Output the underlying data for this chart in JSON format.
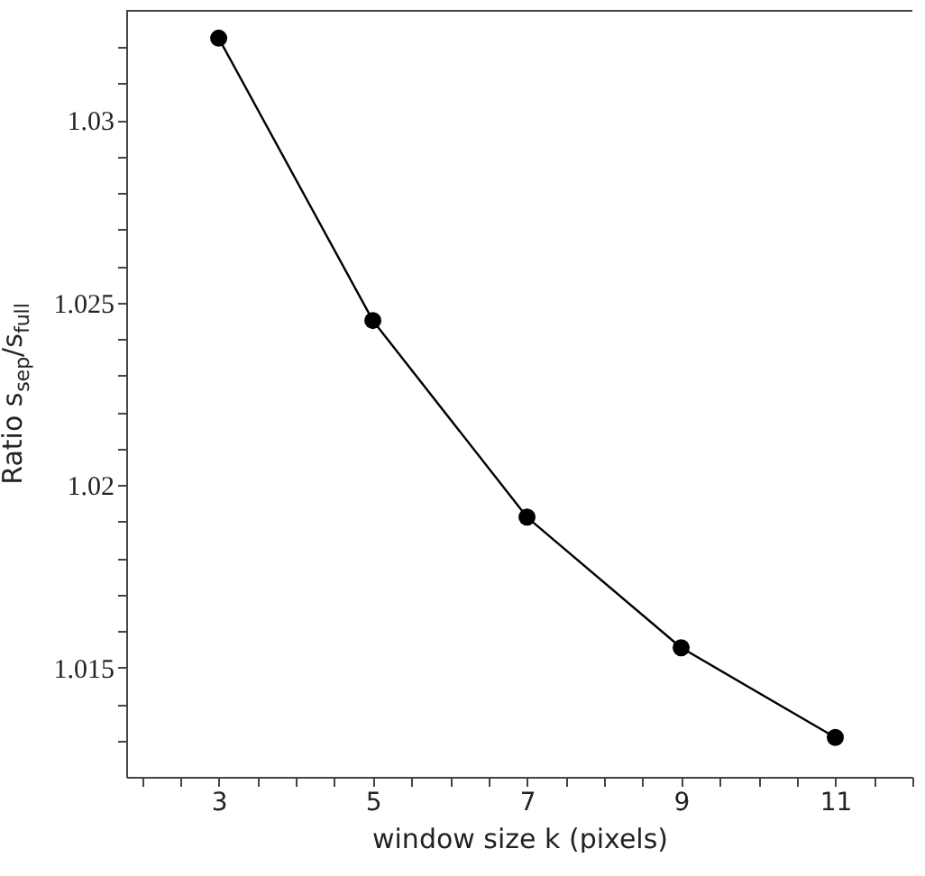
{
  "chart_data": {
    "type": "line",
    "xlabel": "window size k (pixels)",
    "ylabel": "Ratio s$_{sep}$/s$_{full}$",
    "x": [
      3,
      5,
      7,
      9,
      11
    ],
    "series": [
      {
        "color": "#000000",
        "values": [
          1.03225,
          1.02451,
          1.01912,
          1.01554,
          1.01308
        ]
      }
    ],
    "marker": "circle",
    "line_style": "solid",
    "grid": false,
    "xlim": [
      1.8,
      12
    ],
    "xticks": [
      {
        "value": 2,
        "label": null
      },
      {
        "value": 2.5,
        "label": null
      },
      3,
      {
        "value": 3.5,
        "label": null
      },
      {
        "value": 4,
        "label": null
      },
      {
        "value": 4.5,
        "label": null
      },
      5,
      {
        "value": 5.5,
        "label": null
      },
      {
        "value": 6,
        "label": null
      },
      {
        "value": 6.5,
        "label": null
      },
      7,
      {
        "value": 7.5,
        "label": null
      },
      {
        "value": 8,
        "label": null
      },
      {
        "value": 8.5,
        "label": null
      },
      9,
      {
        "value": 9.5,
        "label": null
      },
      {
        "value": 10,
        "label": null
      },
      {
        "value": 10.5,
        "label": null
      },
      11,
      {
        "value": 11.5,
        "label": null
      },
      {
        "value": 12,
        "label": null
      }
    ],
    "ylim": [
      1.012,
      1.033
    ],
    "yticks": [
      {
        "value": 1.013,
        "label": null
      },
      {
        "value": 1.014,
        "label": null
      },
      1.015,
      {
        "value": 1.016,
        "label": null
      },
      {
        "value": 1.017,
        "label": null
      },
      {
        "value": 1.018,
        "label": null
      },
      {
        "value": 1.019,
        "label": null
      },
      1.02,
      {
        "value": 1.021,
        "label": null
      },
      {
        "value": 1.022,
        "label": null
      },
      {
        "value": 1.023,
        "label": null
      },
      {
        "value": 1.024,
        "label": null
      },
      1.025,
      {
        "value": 1.026,
        "label": null
      },
      {
        "value": 1.027,
        "label": null
      },
      {
        "value": 1.028,
        "label": null
      },
      {
        "value": 1.029,
        "label": null
      },
      1.03,
      {
        "value": 1.031,
        "label": null
      },
      {
        "value": 1.032,
        "label": null
      }
    ]
  }
}
